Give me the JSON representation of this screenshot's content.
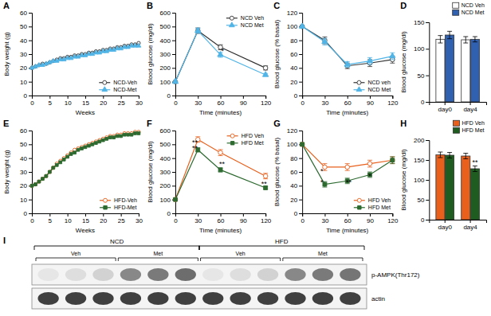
{
  "chart_data": [
    {
      "type": "line",
      "title": "A",
      "xlabel": "Weeks",
      "ylabel": "Body weight (g)",
      "xlim": [
        0,
        30
      ],
      "ylim": [
        0,
        60
      ],
      "xticks": [
        0,
        5,
        10,
        15,
        20,
        25,
        30
      ],
      "yticks": [
        0,
        10,
        20,
        30,
        40,
        50,
        60
      ],
      "x": [
        0,
        1,
        2,
        3,
        4,
        5,
        6,
        7,
        8,
        9,
        10,
        11,
        12,
        13,
        14,
        15,
        16,
        17,
        18,
        19,
        20,
        21,
        22,
        23,
        24,
        25,
        26,
        27,
        28,
        29,
        30
      ],
      "series": [
        {
          "name": "NCD-Veh",
          "color": "#333333",
          "marker": "circle-open",
          "values": [
            20,
            21,
            22,
            23,
            23,
            24,
            25,
            26,
            27,
            27,
            28,
            28,
            29,
            29,
            30,
            30,
            31,
            31,
            32,
            32,
            33,
            33,
            34,
            34,
            35,
            35,
            36,
            36,
            37,
            37,
            38
          ]
        },
        {
          "name": "NCD-Met",
          "color": "#50b4e6",
          "marker": "triangle",
          "values": [
            20,
            21,
            22,
            22,
            23,
            24,
            25,
            25,
            26,
            26,
            27,
            27,
            28,
            28,
            29,
            29,
            30,
            30,
            31,
            31,
            32,
            32,
            33,
            33,
            34,
            34,
            35,
            35,
            36,
            36,
            36
          ]
        }
      ],
      "legend": "lower right"
    },
    {
      "type": "line",
      "title": "B",
      "xlabel": "Time (minutes)",
      "ylabel": "Blood glucose (mg/dl)",
      "xlim": [
        0,
        120
      ],
      "ylim": [
        0,
        600
      ],
      "xticks": [
        0,
        30,
        60,
        90,
        120
      ],
      "yticks": [
        0,
        100,
        200,
        300,
        400,
        500,
        600
      ],
      "x": [
        0,
        30,
        60,
        120
      ],
      "series": [
        {
          "name": "NCD Veh",
          "color": "#333333",
          "marker": "circle-open",
          "values": [
            100,
            470,
            350,
            200
          ],
          "errors": [
            5,
            20,
            18,
            15
          ]
        },
        {
          "name": "NCD Met",
          "color": "#50b4e6",
          "marker": "triangle",
          "values": [
            100,
            470,
            295,
            150
          ],
          "errors": [
            5,
            18,
            18,
            10
          ]
        }
      ],
      "annotations": [
        {
          "text": "*",
          "x": 63,
          "y": 308
        }
      ],
      "legend": "upper right"
    },
    {
      "type": "line",
      "title": "C",
      "xlabel": "Time (minutes)",
      "ylabel": "Blood glucose (% basal)",
      "xlim": [
        0,
        120
      ],
      "ylim": [
        0,
        120
      ],
      "xticks": [
        0,
        30,
        60,
        90,
        120
      ],
      "yticks": [
        0,
        20,
        40,
        60,
        80,
        100,
        120
      ],
      "x": [
        0,
        30,
        60,
        90,
        120
      ],
      "series": [
        {
          "name": "NCD veh",
          "color": "#333333",
          "marker": "circle-open",
          "values": [
            100,
            80,
            43,
            47,
            52
          ],
          "errors": [
            2,
            5,
            4,
            5,
            5
          ]
        },
        {
          "name": "NCD Met",
          "color": "#50b4e6",
          "marker": "triangle",
          "values": [
            100,
            78,
            45,
            50,
            57
          ],
          "errors": [
            2,
            5,
            4,
            5,
            5
          ]
        }
      ],
      "legend": "lower right"
    },
    {
      "type": "bar",
      "title": "D",
      "ylabel": "Blood glucose (mg/dl)",
      "ylim": [
        0,
        150
      ],
      "yticks": [
        0,
        50,
        100,
        150
      ],
      "categories": [
        "day0",
        "day4"
      ],
      "series": [
        {
          "name": "NCD Veh",
          "color": "#ffffff",
          "values": [
            118,
            117
          ],
          "errors": [
            7,
            6
          ]
        },
        {
          "name": "NCD Met",
          "color": "#3060b0",
          "values": [
            126,
            118
          ],
          "errors": [
            7,
            5
          ]
        }
      ],
      "legend": "upper right"
    },
    {
      "type": "line",
      "title": "E",
      "xlabel": "Weeks",
      "ylabel": "Body weight (g)",
      "xlim": [
        0,
        30
      ],
      "ylim": [
        0,
        60
      ],
      "xticks": [
        0,
        5,
        10,
        15,
        20,
        25,
        30
      ],
      "yticks": [
        0,
        10,
        20,
        30,
        40,
        50,
        60
      ],
      "x": [
        0,
        1,
        2,
        3,
        4,
        5,
        6,
        7,
        8,
        9,
        10,
        11,
        12,
        13,
        14,
        15,
        16,
        17,
        18,
        19,
        20,
        21,
        22,
        23,
        24,
        25,
        26,
        27,
        28,
        29,
        30
      ],
      "series": [
        {
          "name": "HFD-Veh",
          "color": "#e8601c",
          "marker": "circle-open",
          "values": [
            20,
            21,
            23,
            25,
            27,
            30,
            33,
            36,
            38,
            40,
            42,
            44,
            46,
            47,
            48,
            49,
            50,
            51,
            52,
            53,
            54,
            55,
            56,
            56,
            57,
            57,
            58,
            58,
            58,
            59,
            59
          ]
        },
        {
          "name": "HFD-Met",
          "color": "#2d6a30",
          "marker": "square",
          "values": [
            20,
            21,
            23,
            25,
            27,
            30,
            33,
            35,
            37,
            39,
            41,
            43,
            44,
            46,
            47,
            48,
            49,
            50,
            51,
            52,
            53,
            54,
            55,
            55,
            56,
            56,
            57,
            57,
            57,
            58,
            58
          ]
        }
      ],
      "legend": "lower right"
    },
    {
      "type": "line",
      "title": "F",
      "xlabel": "Time (minutes)",
      "ylabel": "Blood glucose (mg/dl)",
      "xlim": [
        0,
        120
      ],
      "ylim": [
        0,
        600
      ],
      "xticks": [
        0,
        30,
        60,
        90,
        120
      ],
      "yticks": [
        0,
        100,
        200,
        300,
        400,
        500,
        600
      ],
      "x": [
        0,
        30,
        60,
        120
      ],
      "series": [
        {
          "name": "HFD Veh",
          "color": "#e8601c",
          "marker": "circle-open",
          "values": [
            100,
            535,
            440,
            270
          ],
          "errors": [
            5,
            20,
            22,
            20
          ]
        },
        {
          "name": "HFD Met",
          "color": "#2d6a30",
          "marker": "square",
          "values": [
            100,
            460,
            315,
            185
          ],
          "errors": [
            5,
            15,
            15,
            10
          ]
        }
      ],
      "annotations": [
        {
          "text": "**",
          "x": 26,
          "y": 495
        },
        {
          "text": "**",
          "x": 26,
          "y": 453
        },
        {
          "text": "**",
          "x": 62,
          "y": 340
        },
        {
          "text": "**",
          "x": 118,
          "y": 198
        }
      ],
      "legend": "upper right"
    },
    {
      "type": "line",
      "title": "G",
      "xlabel": "Time (minutes)",
      "ylabel": "Blood glucose (% basal)",
      "xlim": [
        0,
        120
      ],
      "ylim": [
        0,
        120
      ],
      "xticks": [
        0,
        30,
        60,
        90,
        120
      ],
      "yticks": [
        0,
        20,
        40,
        60,
        80,
        100,
        120
      ],
      "x": [
        0,
        30,
        60,
        90,
        120
      ],
      "series": [
        {
          "name": "HFD Veh",
          "color": "#e8601c",
          "marker": "circle-open",
          "values": [
            100,
            67,
            67,
            72,
            77
          ],
          "errors": [
            2,
            5,
            5,
            5,
            5
          ]
        },
        {
          "name": "HFD Met",
          "color": "#2d6a30",
          "marker": "square",
          "values": [
            100,
            42,
            47,
            56,
            77
          ],
          "errors": [
            2,
            4,
            4,
            4,
            5
          ]
        }
      ],
      "annotations": [
        {
          "text": "*",
          "x": 26,
          "y": 58
        },
        {
          "text": "*",
          "x": 26,
          "y": 42
        },
        {
          "text": "**",
          "x": 62,
          "y": 42
        },
        {
          "text": "*",
          "x": 90,
          "y": 51
        }
      ],
      "legend": "lower right"
    },
    {
      "type": "bar",
      "title": "H",
      "ylabel": "Blood glucose (mg/dl)",
      "ylim": [
        0,
        200
      ],
      "yticks": [
        0,
        50,
        100,
        150,
        200
      ],
      "categories": [
        "day0",
        "day4"
      ],
      "series": [
        {
          "name": "HFD Veh",
          "color": "#e8601c",
          "values": [
            163,
            160
          ],
          "errors": [
            7,
            7
          ]
        },
        {
          "name": "HFD Met",
          "color": "#1e5c20",
          "values": [
            162,
            128
          ],
          "errors": [
            7,
            7
          ]
        }
      ],
      "annotations": [
        {
          "text": "**",
          "category": "day4",
          "series": "HFD Met"
        }
      ],
      "legend": "upper right"
    },
    {
      "type": "blot",
      "title": "I",
      "groups": [
        {
          "name": "NCD",
          "subgroups": [
            "Veh",
            "Met"
          ]
        },
        {
          "name": "HFD",
          "subgroups": [
            "Veh",
            "Met"
          ]
        }
      ],
      "series": [
        {
          "name": "p-AMPK(Thr172)",
          "values": [
            0.18,
            0.22,
            0.28,
            0.55,
            0.6,
            0.65,
            0.18,
            0.22,
            0.28,
            0.55,
            0.6,
            0.62
          ]
        },
        {
          "name": "actin",
          "values": [
            0.8,
            0.8,
            0.8,
            0.8,
            0.8,
            0.8,
            0.8,
            0.8,
            0.8,
            0.8,
            0.8,
            0.8
          ]
        }
      ]
    }
  ]
}
